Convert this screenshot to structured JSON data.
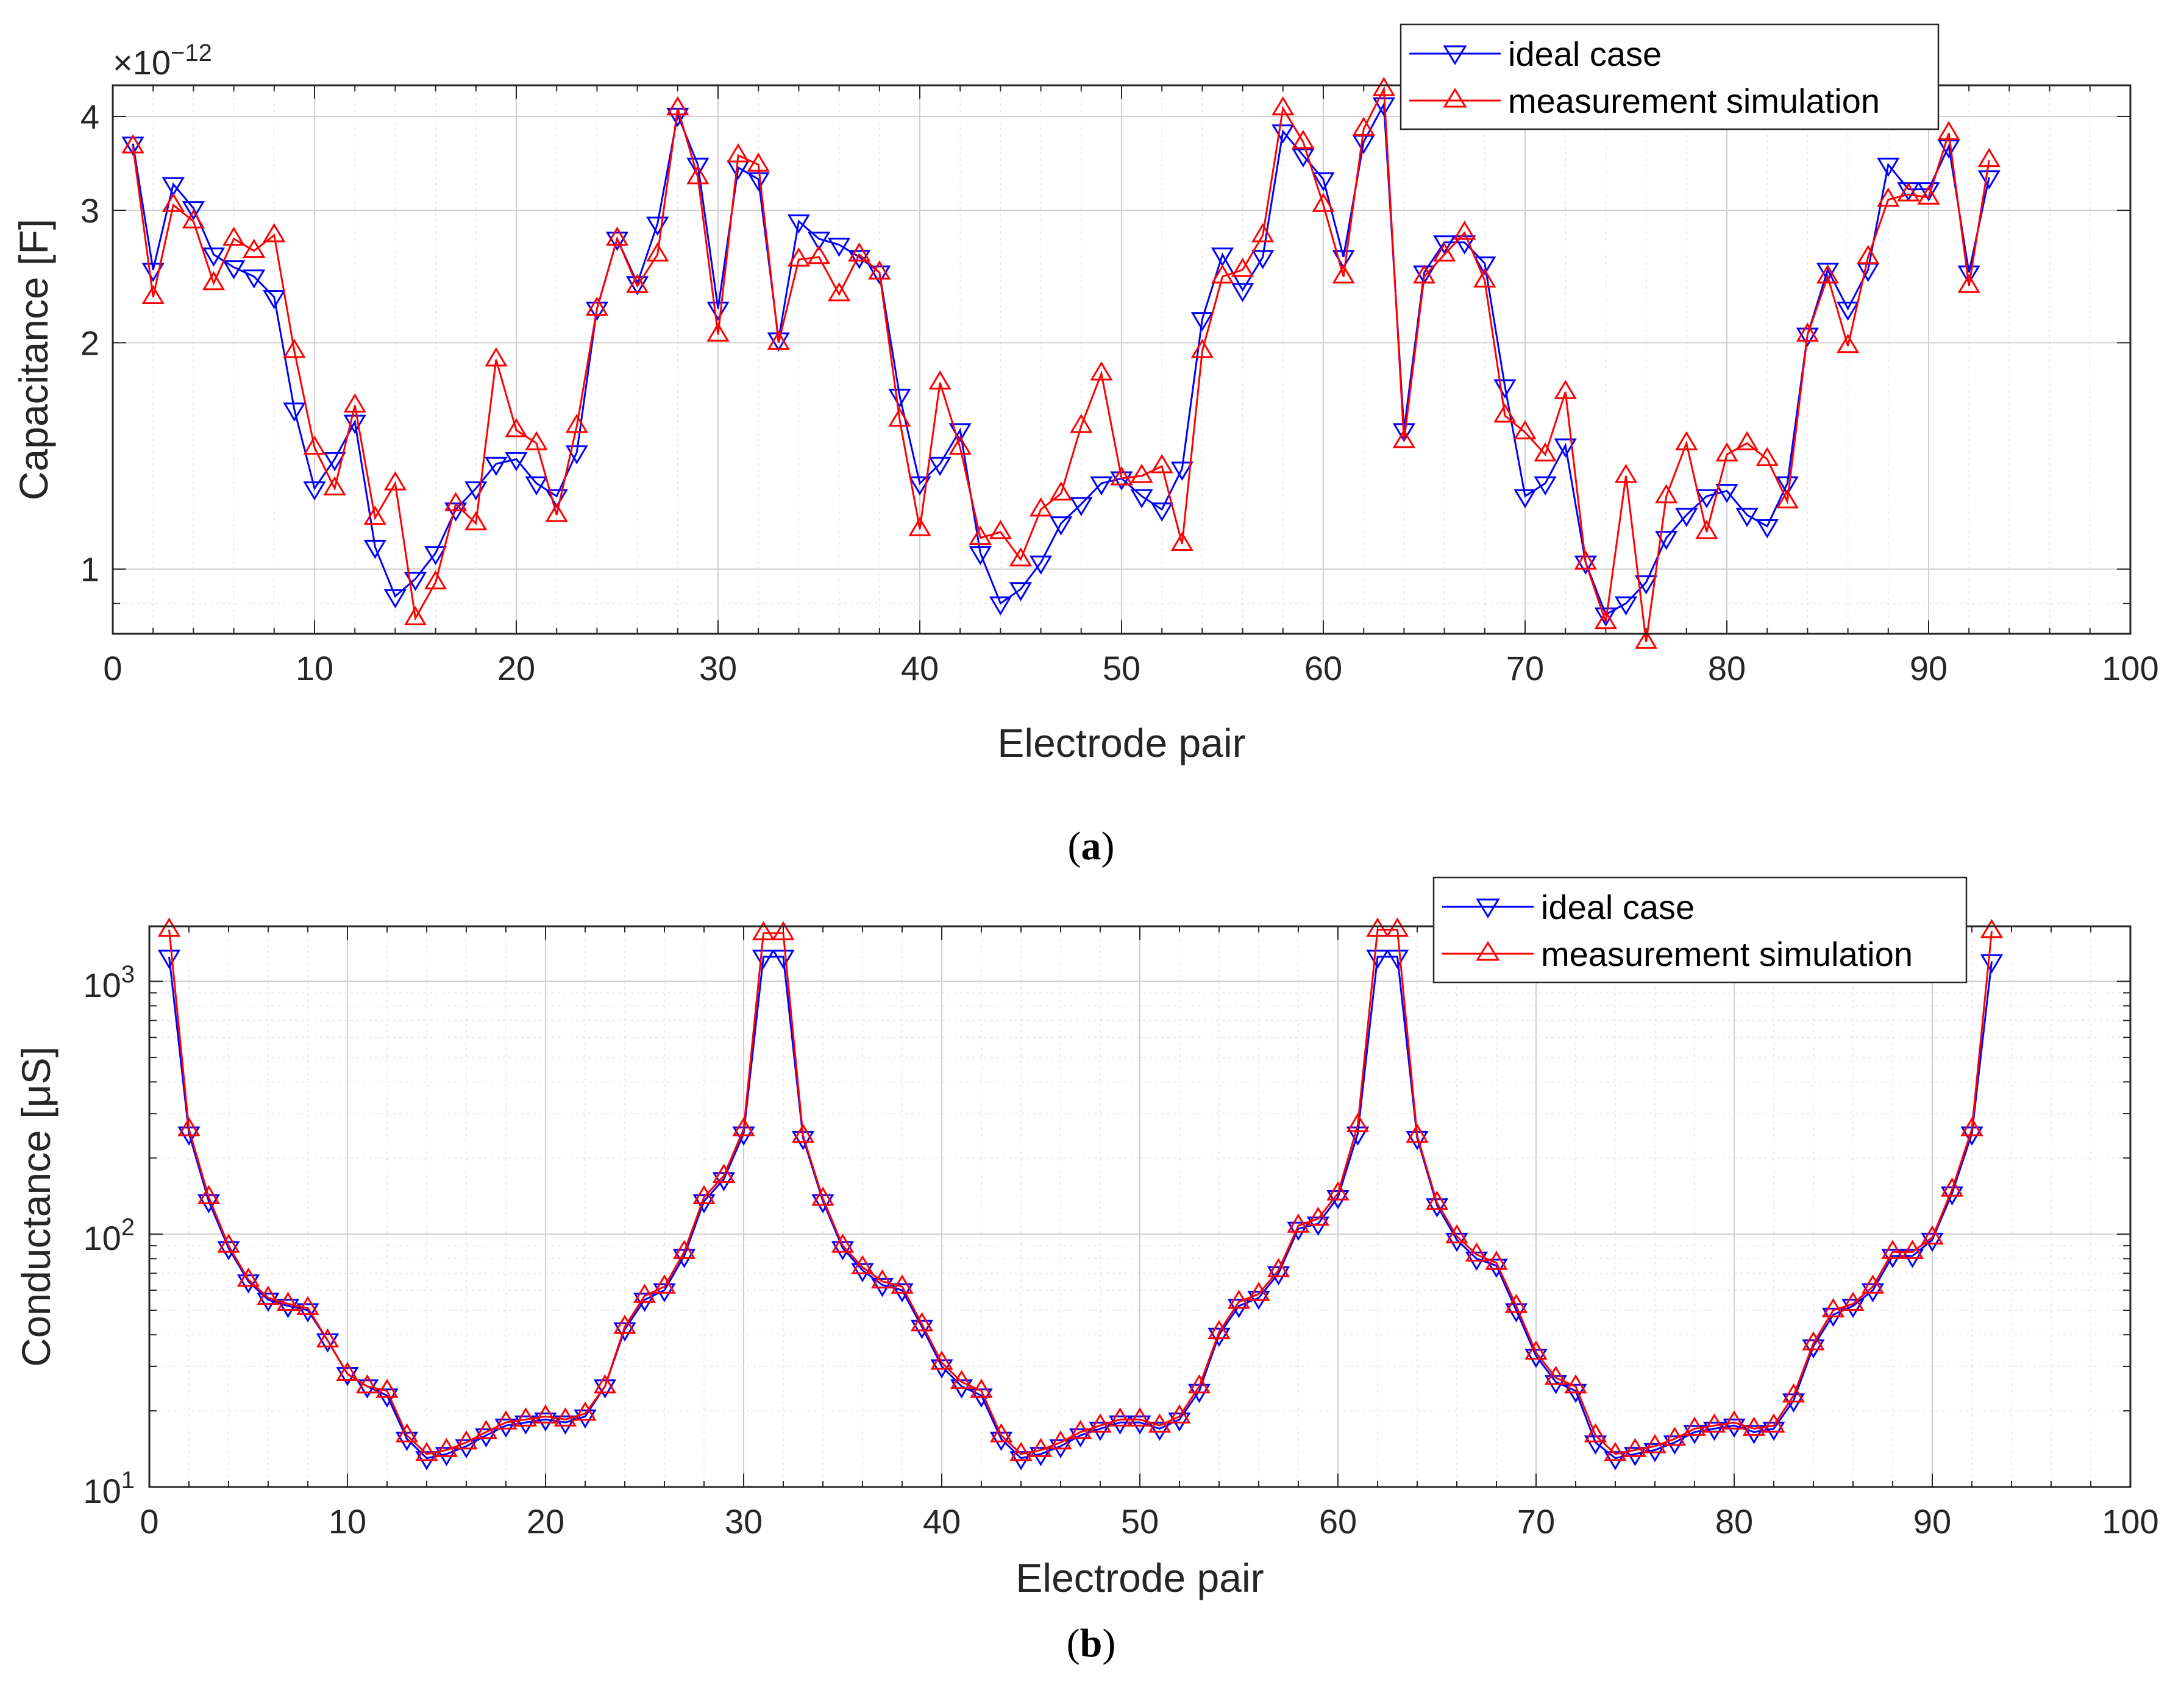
{
  "figure": {
    "caption_a": {
      "open": "(",
      "letter": "a",
      "close": ")"
    },
    "caption_b": {
      "open": "(",
      "letter": "b",
      "close": ")"
    }
  },
  "colors": {
    "ideal": "#0000ff",
    "measurement": "#ff0000",
    "grid": "#dcdcdc",
    "axis": "#262626"
  },
  "chart_data": [
    {
      "type": "line",
      "scale": "log",
      "xlabel": "Electrode pair",
      "ylabel": "Capacitance [F]",
      "exponent": {
        "base": "×10",
        "power": "−12"
      },
      "xlim": [
        0,
        100
      ],
      "ylim": [
        0.82,
        4.4
      ],
      "xticks": [
        0,
        10,
        20,
        30,
        40,
        50,
        60,
        70,
        80,
        90,
        100
      ],
      "yticks": [
        {
          "v": 1,
          "label": "1"
        },
        {
          "v": 2,
          "label": "2"
        },
        {
          "v": 3,
          "label": "3"
        },
        {
          "v": 4,
          "label": "4"
        }
      ],
      "yminor": [
        0.9,
        1.5,
        2.5,
        3.5
      ],
      "legend": {
        "position": "top-right",
        "entries": [
          "ideal case",
          "measurement simulation"
        ]
      },
      "series": [
        {
          "name": "ideal case",
          "marker": "triangle-down",
          "color": "#0000ff",
          "values": [
            3.68,
            2.5,
            3.25,
            3.02,
            2.62,
            2.52,
            2.45,
            2.3,
            1.63,
            1.28,
            1.4,
            1.57,
            1.07,
            0.92,
            0.97,
            1.05,
            1.2,
            1.28,
            1.38,
            1.4,
            1.3,
            1.25,
            1.43,
            2.22,
            2.75,
            2.4,
            2.88,
            4.02,
            3.45,
            2.22,
            3.42,
            3.3,
            2.02,
            2.9,
            2.75,
            2.7,
            2.6,
            2.48,
            1.7,
            1.3,
            1.38,
            1.53,
            1.05,
            0.9,
            0.94,
            1.02,
            1.15,
            1.22,
            1.3,
            1.32,
            1.25,
            1.2,
            1.36,
            2.15,
            2.62,
            2.35,
            2.6,
            3.82,
            3.55,
            3.3,
            2.6,
            3.7,
            4.15,
            1.53,
            2.48,
            2.72,
            2.72,
            2.55,
            1.75,
            1.25,
            1.3,
            1.46,
            1.02,
            0.87,
            0.9,
            0.96,
            1.1,
            1.18,
            1.25,
            1.27,
            1.18,
            1.14,
            1.3,
            2.05,
            2.5,
            2.22,
            2.5,
            3.45,
            3.2,
            3.2,
            3.65,
            2.48,
            3.32
          ]
        },
        {
          "name": "measurement simulation",
          "marker": "triangle-up",
          "color": "#ff0000",
          "values": [
            3.65,
            2.3,
            3.05,
            2.9,
            2.4,
            2.75,
            2.65,
            2.78,
            1.95,
            1.45,
            1.28,
            1.65,
            1.17,
            1.3,
            0.86,
            0.96,
            1.22,
            1.15,
            1.9,
            1.53,
            1.47,
            1.18,
            1.55,
            2.22,
            2.75,
            2.38,
            2.62,
            4.1,
            3.32,
            2.05,
            3.55,
            3.45,
            2.0,
            2.58,
            2.6,
            2.32,
            2.62,
            2.48,
            1.58,
            1.13,
            1.77,
            1.45,
            1.1,
            1.12,
            1.03,
            1.2,
            1.26,
            1.55,
            1.82,
            1.32,
            1.33,
            1.37,
            1.08,
            1.95,
            2.45,
            2.5,
            2.78,
            4.1,
            3.7,
            3.05,
            2.45,
            3.85,
            4.35,
            1.48,
            2.45,
            2.62,
            2.8,
            2.42,
            1.6,
            1.52,
            1.42,
            1.72,
            1.02,
            0.85,
            1.33,
            0.8,
            1.25,
            1.47,
            1.12,
            1.42,
            1.47,
            1.4,
            1.23,
            2.05,
            2.45,
            1.98,
            2.6,
            3.1,
            3.15,
            3.12,
            3.8,
            2.38,
            3.5
          ]
        }
      ]
    },
    {
      "type": "line",
      "scale": "log",
      "xlabel": "Electrode pair",
      "ylabel": "Conductance [μS]",
      "xlim": [
        0,
        100
      ],
      "ylim": [
        10,
        1650
      ],
      "xticks": [
        0,
        10,
        20,
        30,
        40,
        50,
        60,
        70,
        80,
        90,
        100
      ],
      "yticks": [
        {
          "v": 10,
          "base": "10",
          "sup": "1"
        },
        {
          "v": 100,
          "base": "10",
          "sup": "2"
        },
        {
          "v": 1000,
          "base": "10",
          "sup": "3"
        }
      ],
      "legend": {
        "position": "top-right",
        "entries": [
          "ideal case",
          "measurement simulation"
        ]
      },
      "series": [
        {
          "name": "ideal case",
          "marker": "triangle-down",
          "color": "#0000ff",
          "values": [
            1250,
            250,
            135,
            88,
            65,
            55,
            52,
            50,
            38,
            28,
            25,
            23,
            15.5,
            13,
            13.5,
            14.5,
            16,
            17.5,
            18,
            18.5,
            18,
            19,
            25,
            42,
            55,
            60,
            82,
            135,
            165,
            250,
            1250,
            1250,
            240,
            135,
            88,
            72,
            63,
            60,
            43,
            30,
            25,
            23,
            15.5,
            13,
            13.5,
            14.5,
            16,
            17,
            18,
            18,
            17,
            18.5,
            24,
            40,
            52,
            56,
            70,
            105,
            110,
            140,
            250,
            1250,
            1250,
            240,
            130,
            95,
            80,
            75,
            50,
            33,
            26,
            24,
            15,
            13,
            13.5,
            14,
            15,
            16.5,
            17,
            17.5,
            16.5,
            17,
            22,
            36,
            48,
            52,
            60,
            82,
            82,
            95,
            145,
            250,
            1200
          ]
        },
        {
          "name": "measurement simulation",
          "marker": "triangle-up",
          "color": "#ff0000",
          "values": [
            1600,
            260,
            140,
            90,
            66,
            56,
            53,
            51,
            38,
            28,
            25,
            24,
            16,
            13.5,
            14,
            15,
            16.5,
            18,
            18.5,
            19,
            18.5,
            19.5,
            25,
            43,
            57,
            62,
            85,
            140,
            170,
            260,
            1550,
            1550,
            245,
            138,
            90,
            74,
            65,
            62,
            44,
            31,
            26,
            24,
            16,
            13.5,
            14,
            15,
            16.5,
            17.5,
            18.5,
            18.5,
            17.5,
            19,
            25,
            41,
            54,
            58,
            72,
            108,
            115,
            145,
            270,
            1600,
            1600,
            245,
            133,
            98,
            83,
            77,
            52,
            34,
            27,
            25,
            16,
            13.5,
            14,
            14.5,
            15.5,
            17,
            17.5,
            18,
            17,
            17.5,
            23,
            37,
            50,
            53,
            62,
            85,
            85,
            97,
            150,
            260,
            1580
          ]
        }
      ]
    }
  ]
}
